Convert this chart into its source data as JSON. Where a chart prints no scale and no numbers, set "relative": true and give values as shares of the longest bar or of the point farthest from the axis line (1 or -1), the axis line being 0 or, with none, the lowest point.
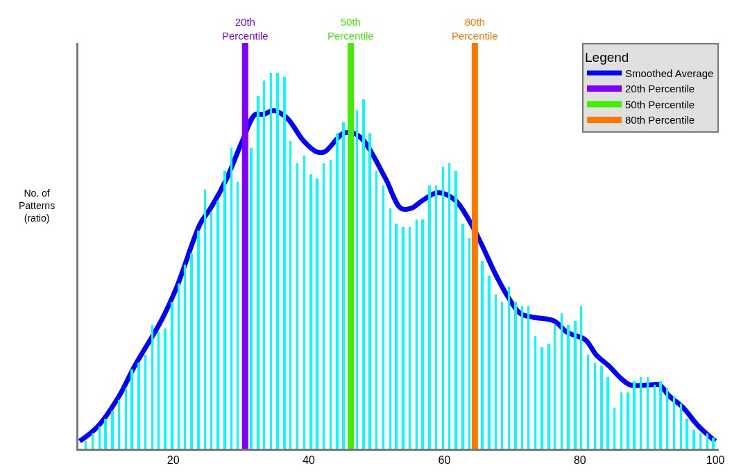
{
  "chart_data": {
    "type": "bar",
    "relative": true,
    "ylabel": "No. of Patterns (ratio)",
    "legend_title": "Legend",
    "legend": "top right",
    "xlim": [
      6,
      100.5
    ],
    "xticks": [
      20,
      40,
      60,
      80,
      100
    ],
    "series": [
      {
        "color": "#00ffff",
        "x": [
          7.1,
          8.1,
          9.1,
          10.0,
          11.0,
          12.0,
          13.0,
          13.9,
          14.9,
          15.9,
          16.9,
          17.8,
          18.8,
          19.8,
          20.8,
          21.7,
          22.7,
          23.7,
          24.7,
          25.6,
          26.6,
          27.6,
          28.6,
          29.5,
          30.5,
          31.5,
          32.5,
          33.4,
          34.4,
          35.4,
          36.4,
          37.3,
          38.3,
          39.3,
          40.3,
          41.2,
          42.2,
          43.2,
          44.2,
          45.1,
          46.1,
          47.1,
          48.1,
          49.0,
          50.0,
          51.0,
          52.0,
          52.9,
          53.9,
          54.9,
          55.9,
          56.8,
          57.8,
          58.8,
          59.8,
          60.7,
          61.7,
          62.7,
          63.7,
          64.6,
          65.6,
          66.6,
          67.6,
          68.5,
          69.5,
          70.5,
          71.5,
          72.4,
          73.4,
          74.4,
          75.4,
          76.3,
          77.3,
          78.3,
          79.3,
          80.2,
          81.2,
          82.2,
          83.2,
          84.1,
          85.1,
          86.1,
          87.1,
          88.0,
          89.0,
          90.0,
          91.0,
          91.9,
          92.9,
          93.9,
          94.9,
          95.8,
          96.8,
          97.8,
          98.8,
          99.7
        ],
        "values": [
          0.02,
          0.04,
          0.06,
          0.08,
          0.1,
          0.13,
          0.16,
          0.21,
          0.23,
          0.25,
          0.33,
          0.31,
          0.32,
          0.39,
          0.44,
          0.49,
          0.52,
          0.58,
          0.69,
          0.63,
          0.66,
          0.74,
          0.8,
          0.71,
          null,
          0.8,
          0.94,
          0.98,
          1.0,
          1.0,
          0.99,
          0.82,
          0.76,
          0.78,
          0.73,
          0.72,
          0.76,
          0.77,
          0.84,
          0.87,
          null,
          0.9,
          0.93,
          0.84,
          0.74,
          0.7,
          0.64,
          0.6,
          0.59,
          0.59,
          0.61,
          0.61,
          0.7,
          0.7,
          0.75,
          0.76,
          0.74,
          0.6,
          0.56,
          null,
          0.5,
          0.46,
          0.41,
          0.39,
          0.43,
          0.39,
          0.38,
          0.38,
          0.3,
          0.27,
          0.28,
          0.33,
          0.36,
          0.33,
          0.34,
          0.38,
          0.25,
          0.23,
          0.22,
          0.19,
          0.11,
          0.15,
          0.15,
          0.18,
          0.19,
          0.19,
          0.17,
          0.18,
          0.16,
          0.14,
          0.12,
          0.08,
          0.05,
          0.04,
          0.04,
          0.03
        ]
      },
      {
        "type": "line",
        "name": "Smoothed Average",
        "color": "#0000ff",
        "x": [
          6.2,
          8.9,
          12.0,
          14.3,
          18.2,
          20.5,
          24.0,
          25.5,
          27.9,
          30.2,
          32.1,
          33.3,
          34.8,
          36.8,
          39.2,
          41.2,
          42.3,
          45.1,
          46.6,
          48.1,
          51.3,
          53.6,
          55.1,
          56.7,
          58.6,
          59.8,
          61.7,
          63.6,
          65.6,
          67.4,
          69.2,
          71.2,
          73.1,
          76.2,
          78.1,
          80.8,
          82.4,
          84.3,
          85.9,
          87.4,
          90.5,
          91.7,
          93.2,
          95.2,
          97.5,
          100.0
        ],
        "values": [
          0.02,
          0.06,
          0.14,
          0.22,
          0.34,
          0.43,
          0.6,
          0.64,
          0.72,
          0.82,
          0.89,
          0.89,
          0.9,
          0.88,
          0.82,
          0.79,
          0.79,
          0.84,
          0.84,
          0.82,
          0.72,
          0.64,
          0.64,
          0.66,
          0.68,
          0.68,
          0.66,
          0.61,
          0.54,
          0.47,
          0.41,
          0.36,
          0.35,
          0.34,
          0.31,
          0.29,
          0.25,
          0.22,
          0.19,
          0.17,
          0.17,
          0.17,
          0.14,
          0.11,
          0.06,
          0.02
        ]
      }
    ],
    "ref_lines": [
      {
        "axis": "x",
        "value": 30.6,
        "label": "20th Percentile",
        "color": "#8000ff"
      },
      {
        "axis": "x",
        "value": 46.2,
        "label": "50th Percentile",
        "color": "#44ee00"
      },
      {
        "axis": "x",
        "value": 64.5,
        "label": "80th Percentile",
        "color": "#ff7700"
      }
    ]
  }
}
